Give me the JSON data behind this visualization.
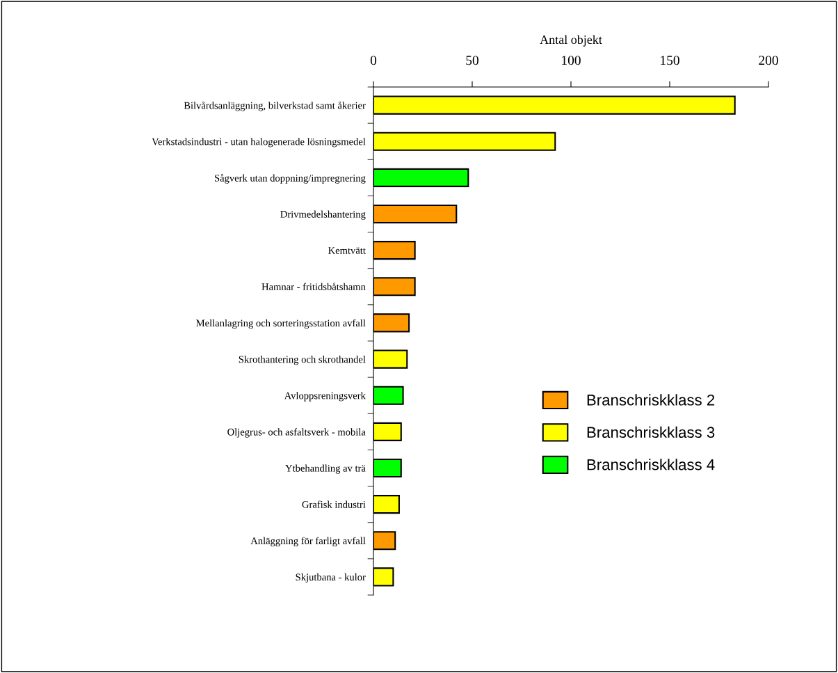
{
  "chart_data": {
    "type": "bar",
    "orientation": "horizontal",
    "xlabel": "Antal objekt",
    "categories": [
      "Bilvårdsanläggning, bilverkstad samt åkerier",
      "Verkstadsindustri - utan halogenerade lösningsmedel",
      "Sågverk utan doppning/impregnering",
      "Drivmedelshantering",
      "Kemtvätt",
      "Hamnar - fritidsbåtshamn",
      "Mellanlagring och sorteringsstation avfall",
      "Skrothantering och skrothandel",
      "Avloppsreningsverk",
      "Oljegrus- och asfaltsverk - mobila",
      "Ytbehandling av trä",
      "Grafisk industri",
      "Anläggning för farligt avfall",
      "Skjutbana - kulor"
    ],
    "series": [
      {
        "name": "Branschriskklass 2",
        "color": "#ff9900",
        "values": [
          null,
          null,
          null,
          42,
          21,
          21,
          18,
          null,
          null,
          null,
          null,
          null,
          11,
          null
        ]
      },
      {
        "name": "Branschriskklass 3",
        "color": "#ffff00",
        "values": [
          183,
          92,
          null,
          null,
          null,
          null,
          null,
          17,
          null,
          14,
          null,
          13,
          null,
          10
        ]
      },
      {
        "name": "Branschriskklass 4",
        "color": "#00ff00",
        "values": [
          null,
          null,
          48,
          null,
          null,
          null,
          null,
          null,
          15,
          null,
          14,
          null,
          null,
          null
        ]
      }
    ],
    "xlim": [
      0,
      200
    ],
    "xticks": [
      0,
      50,
      100,
      150,
      200
    ],
    "grid": false,
    "legend": "right"
  }
}
